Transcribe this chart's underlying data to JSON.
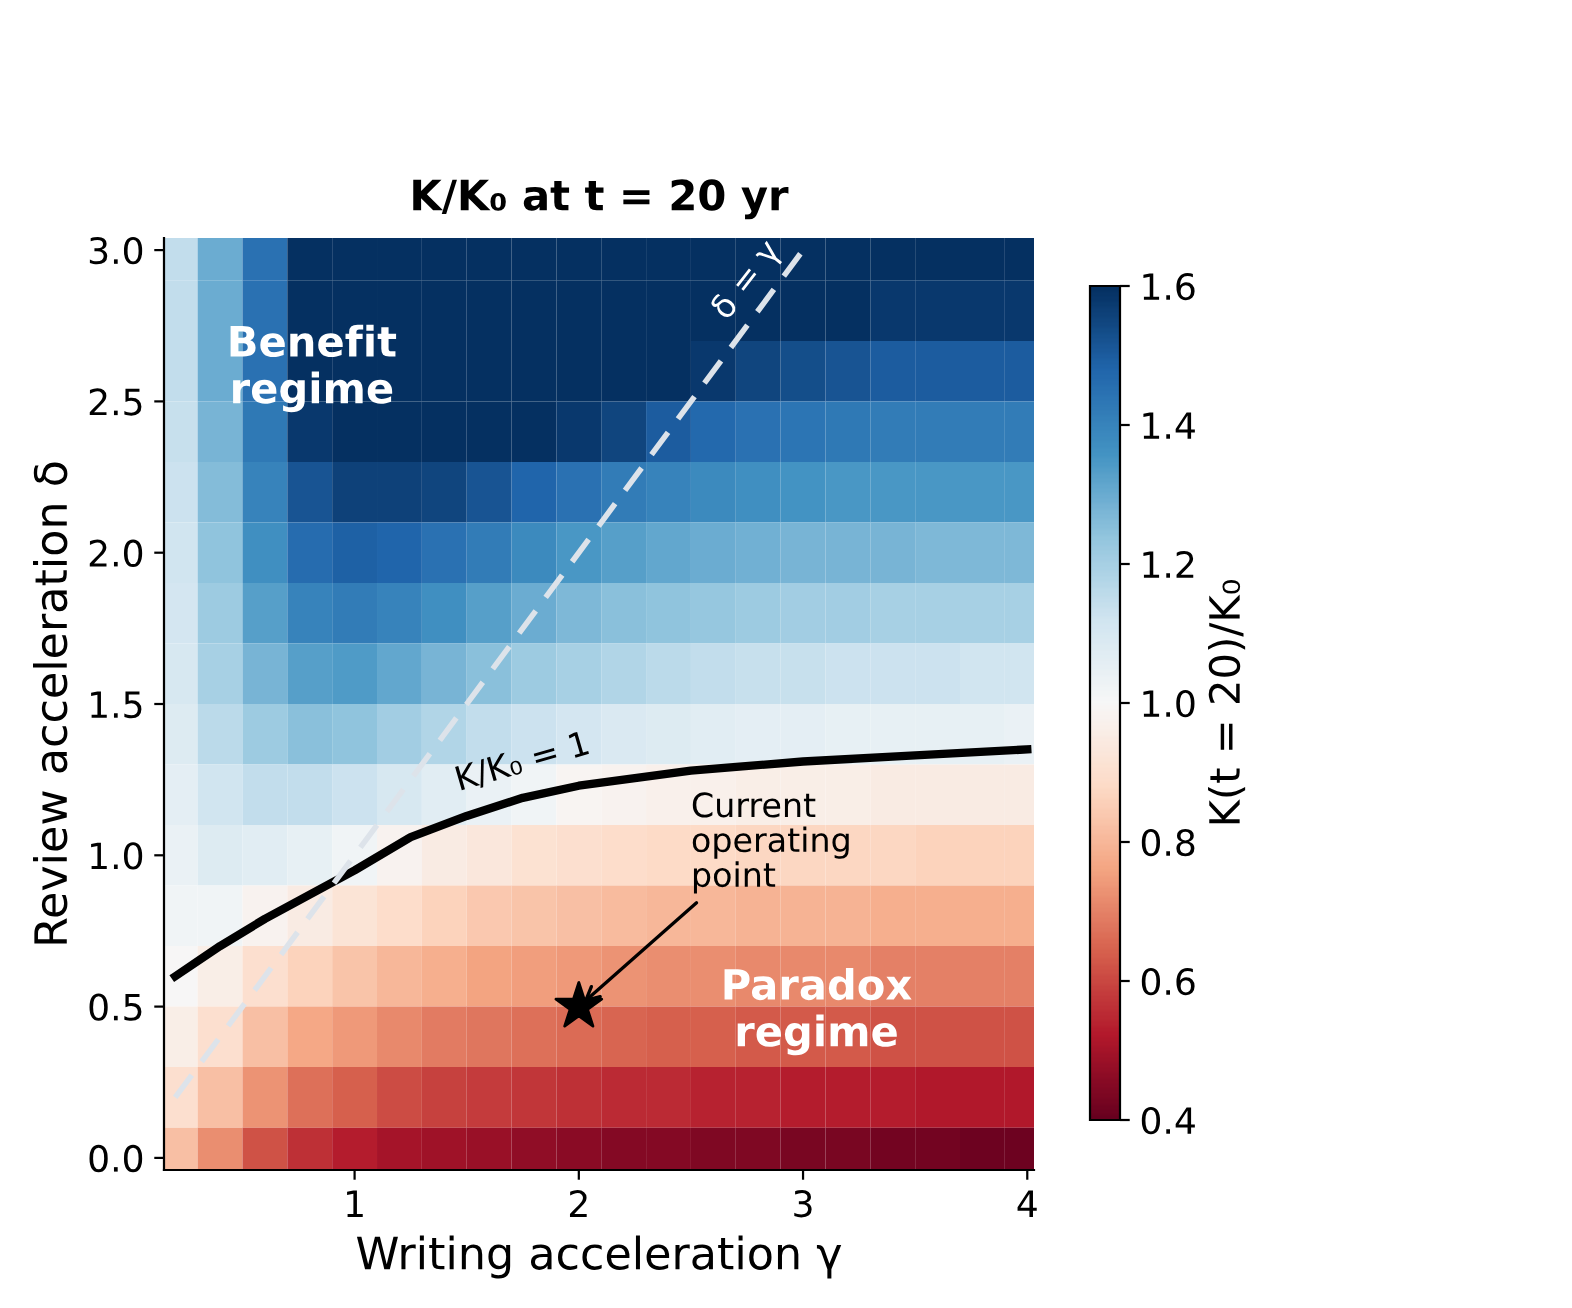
{
  "chart_data": {
    "type": "heatmap",
    "title": "K/K₀ at t = 20 yr",
    "xlabel": "Writing acceleration γ",
    "ylabel": "Review acceleration δ",
    "clabel": "K(t = 20)/K₀",
    "x": [
      0.2,
      0.4,
      0.6,
      0.8,
      1.0,
      1.2,
      1.4,
      1.6,
      1.8,
      2.0,
      2.2,
      2.4,
      2.6,
      2.8,
      3.0,
      3.2,
      3.4,
      3.6,
      3.8,
      4.0
    ],
    "y": [
      3.0,
      2.8,
      2.6,
      2.4,
      2.2,
      2.0,
      1.8,
      1.6,
      1.4,
      1.2,
      1.0,
      0.8,
      0.6,
      0.4,
      0.2,
      0.0
    ],
    "cells": [
      [
        1.15,
        1.3,
        1.45,
        1.6,
        1.6,
        1.6,
        1.6,
        1.6,
        1.6,
        1.6,
        1.6,
        1.6,
        1.6,
        1.6,
        1.6,
        1.6,
        1.6,
        1.6,
        1.6,
        1.6
      ],
      [
        1.15,
        1.3,
        1.45,
        1.6,
        1.6,
        1.6,
        1.6,
        1.6,
        1.6,
        1.6,
        1.6,
        1.6,
        1.6,
        1.6,
        1.6,
        1.6,
        1.58,
        1.58,
        1.58,
        1.58
      ],
      [
        1.15,
        1.3,
        1.45,
        1.6,
        1.6,
        1.6,
        1.6,
        1.6,
        1.6,
        1.6,
        1.6,
        1.6,
        1.58,
        1.55,
        1.53,
        1.52,
        1.5,
        1.5,
        1.5,
        1.5
      ],
      [
        1.14,
        1.28,
        1.43,
        1.58,
        1.6,
        1.6,
        1.6,
        1.6,
        1.6,
        1.58,
        1.55,
        1.5,
        1.47,
        1.45,
        1.44,
        1.43,
        1.42,
        1.42,
        1.42,
        1.42
      ],
      [
        1.13,
        1.26,
        1.4,
        1.52,
        1.56,
        1.56,
        1.55,
        1.52,
        1.48,
        1.45,
        1.42,
        1.4,
        1.38,
        1.37,
        1.36,
        1.35,
        1.35,
        1.35,
        1.35,
        1.35
      ],
      [
        1.12,
        1.24,
        1.37,
        1.46,
        1.49,
        1.48,
        1.45,
        1.42,
        1.38,
        1.35,
        1.33,
        1.31,
        1.3,
        1.29,
        1.28,
        1.28,
        1.28,
        1.27,
        1.27,
        1.27
      ],
      [
        1.11,
        1.22,
        1.33,
        1.4,
        1.42,
        1.4,
        1.37,
        1.33,
        1.3,
        1.27,
        1.25,
        1.24,
        1.23,
        1.22,
        1.21,
        1.21,
        1.2,
        1.2,
        1.2,
        1.2
      ],
      [
        1.1,
        1.2,
        1.28,
        1.33,
        1.34,
        1.31,
        1.28,
        1.25,
        1.22,
        1.2,
        1.18,
        1.16,
        1.15,
        1.14,
        1.14,
        1.13,
        1.13,
        1.13,
        1.12,
        1.12
      ],
      [
        1.08,
        1.16,
        1.22,
        1.25,
        1.24,
        1.21,
        1.18,
        1.15,
        1.13,
        1.11,
        1.09,
        1.08,
        1.07,
        1.06,
        1.06,
        1.05,
        1.05,
        1.05,
        1.05,
        1.04
      ],
      [
        1.06,
        1.12,
        1.15,
        1.15,
        1.13,
        1.1,
        1.07,
        1.04,
        1.02,
        0.99,
        0.98,
        0.97,
        0.97,
        0.96,
        0.96,
        0.96,
        0.95,
        0.95,
        0.95,
        0.95
      ],
      [
        1.04,
        1.08,
        1.07,
        1.05,
        1.02,
        0.98,
        0.95,
        0.93,
        0.91,
        0.9,
        0.89,
        0.88,
        0.88,
        0.87,
        0.87,
        0.87,
        0.87,
        0.86,
        0.86,
        0.86
      ],
      [
        1.02,
        1.02,
        0.98,
        0.95,
        0.92,
        0.89,
        0.86,
        0.84,
        0.83,
        0.82,
        0.81,
        0.8,
        0.8,
        0.79,
        0.79,
        0.79,
        0.78,
        0.78,
        0.78,
        0.78
      ],
      [
        1.0,
        0.96,
        0.9,
        0.86,
        0.83,
        0.8,
        0.78,
        0.76,
        0.75,
        0.74,
        0.73,
        0.72,
        0.72,
        0.71,
        0.71,
        0.71,
        0.7,
        0.7,
        0.7,
        0.7
      ],
      [
        0.96,
        0.9,
        0.82,
        0.77,
        0.74,
        0.71,
        0.69,
        0.68,
        0.67,
        0.66,
        0.65,
        0.64,
        0.64,
        0.63,
        0.63,
        0.63,
        0.62,
        0.62,
        0.62,
        0.62
      ],
      [
        0.9,
        0.82,
        0.73,
        0.67,
        0.64,
        0.61,
        0.59,
        0.58,
        0.57,
        0.56,
        0.55,
        0.55,
        0.54,
        0.54,
        0.53,
        0.53,
        0.53,
        0.52,
        0.52,
        0.52
      ],
      [
        0.82,
        0.72,
        0.62,
        0.56,
        0.53,
        0.5,
        0.49,
        0.48,
        0.47,
        0.46,
        0.45,
        0.45,
        0.44,
        0.44,
        0.43,
        0.43,
        0.42,
        0.42,
        0.41,
        0.41
      ]
    ],
    "clim": [
      0.4,
      1.6
    ],
    "cticks": [
      {
        "value": 0.4,
        "label": "0.4"
      },
      {
        "value": 0.6,
        "label": "0.6"
      },
      {
        "value": 0.8,
        "label": "0.8"
      },
      {
        "value": 1,
        "label": "1.0"
      },
      {
        "value": 1.2,
        "label": "1.2"
      },
      {
        "value": 1.4,
        "label": "1.4"
      },
      {
        "value": 1.6,
        "label": "1.6"
      }
    ],
    "xlim": [
      0.15,
      4.03
    ],
    "ylim": [
      -0.04,
      3.04
    ],
    "xticks": [
      1,
      2,
      3,
      4
    ],
    "yticks": [
      {
        "value": 0,
        "label": "0.0"
      },
      {
        "value": 0.5,
        "label": "0.5"
      },
      {
        "value": 1,
        "label": "1.0"
      },
      {
        "value": 1.5,
        "label": "1.5"
      },
      {
        "value": 2,
        "label": "2.0"
      },
      {
        "value": 2.5,
        "label": "2.5"
      },
      {
        "value": 3,
        "label": "3.0"
      }
    ],
    "series": [
      {
        "type": "line",
        "color": "#000000",
        "line_style": "solid",
        "marker": "none",
        "x": [
          0.2,
          0.4,
          0.6,
          0.8,
          1.0,
          1.25,
          1.5,
          1.75,
          2.0,
          2.5,
          3.0,
          3.5,
          4.0
        ],
        "values": [
          0.6,
          0.7,
          0.79,
          0.87,
          0.95,
          1.06,
          1.13,
          1.19,
          1.23,
          1.28,
          1.31,
          1.33,
          1.35
        ]
      },
      {
        "type": "line",
        "color": "#dde3ea",
        "line_style": "dashed",
        "marker": "none",
        "x": [
          0.2,
          3.0
        ],
        "values": [
          0.2,
          3.0
        ]
      },
      {
        "type": "scatter",
        "color": "#000000",
        "marker": "star",
        "x": [
          2.0
        ],
        "values": [
          0.5
        ]
      }
    ],
    "annotations": [
      "Benefit\nregime",
      "Paradox\nregime",
      {
        "text": "Current\noperating\npoint",
        "x": 2.0,
        "y": 0.5
      },
      {
        "text": "K/K₀ = 1",
        "x": 1.75,
        "y": 1.19
      },
      {
        "text": "δ = γ",
        "x": 2.75,
        "y": 2.75
      }
    ],
    "grid": false
  }
}
